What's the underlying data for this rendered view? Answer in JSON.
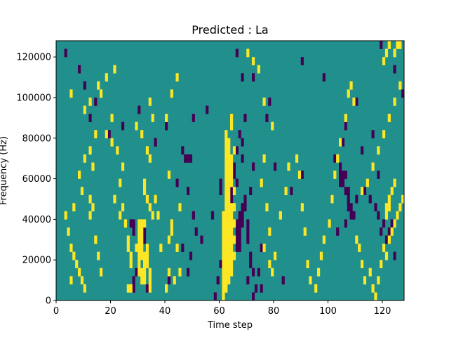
{
  "chart_data": {
    "type": "heatmap",
    "title": "Predicted : La",
    "xlabel": "Time step",
    "ylabel": "Frequency (Hz)",
    "xlim": [
      0,
      128
    ],
    "ylim": [
      0,
      128000
    ],
    "x_ticks": [
      0,
      20,
      40,
      60,
      80,
      100,
      120
    ],
    "y_ticks": [
      0,
      20000,
      40000,
      60000,
      80000,
      100000,
      120000
    ],
    "rows": 32,
    "row_height": 4000,
    "colors": {
      "background": "#21908d",
      "low": "#440154",
      "high": "#fde725"
    },
    "grid": false,
    "legend": "none",
    "low_cells": [
      [
        3,
        30
      ],
      [
        8,
        28
      ],
      [
        10,
        26
      ],
      [
        12,
        22
      ],
      [
        14,
        24
      ],
      [
        36,
        19
      ],
      [
        40,
        21
      ],
      [
        44,
        14
      ],
      [
        46,
        18
      ],
      [
        48,
        13
      ],
      [
        50,
        10
      ],
      [
        55,
        23
      ],
      [
        58,
        0
      ],
      [
        59,
        2
      ],
      [
        60,
        4
      ],
      [
        66,
        30
      ],
      [
        68,
        27
      ],
      [
        75,
        6
      ],
      [
        77,
        22
      ],
      [
        90,
        29
      ],
      [
        98,
        27
      ],
      [
        110,
        24
      ],
      [
        119,
        31
      ],
      [
        124,
        28
      ],
      [
        127,
        25
      ],
      [
        47,
        17
      ],
      [
        48,
        17
      ],
      [
        49,
        17
      ],
      [
        50,
        22
      ],
      [
        28,
        9
      ],
      [
        27,
        9
      ],
      [
        28,
        8
      ],
      [
        32,
        8
      ],
      [
        32,
        7
      ],
      [
        28,
        2
      ],
      [
        28,
        1
      ],
      [
        29,
        3
      ],
      [
        33,
        1
      ],
      [
        41,
        2
      ],
      [
        46,
        6
      ],
      [
        48,
        3
      ],
      [
        49,
        5
      ],
      [
        51,
        8
      ],
      [
        53,
        7
      ],
      [
        57,
        10
      ],
      [
        60,
        13
      ],
      [
        60,
        14
      ],
      [
        64,
        12
      ],
      [
        64,
        13
      ],
      [
        65,
        15
      ],
      [
        65,
        16
      ],
      [
        66,
        14
      ],
      [
        66,
        18
      ],
      [
        67,
        20
      ],
      [
        68,
        17
      ],
      [
        68,
        19
      ],
      [
        69,
        22
      ],
      [
        70,
        7
      ],
      [
        70,
        8
      ],
      [
        70,
        9
      ],
      [
        71,
        4
      ],
      [
        71,
        5
      ],
      [
        72,
        3
      ],
      [
        71,
        13
      ],
      [
        72,
        16
      ],
      [
        74,
        3
      ],
      [
        75,
        1
      ],
      [
        72,
        0
      ],
      [
        73,
        1
      ],
      [
        72,
        27
      ],
      [
        78,
        24
      ],
      [
        80,
        16
      ],
      [
        83,
        2
      ],
      [
        86,
        13
      ],
      [
        90,
        15
      ],
      [
        24,
        21
      ],
      [
        30,
        23
      ],
      [
        36,
        19
      ],
      [
        19,
        20
      ],
      [
        66,
        6
      ],
      [
        66,
        7
      ],
      [
        66,
        8
      ],
      [
        66,
        9
      ],
      [
        67,
        6
      ],
      [
        67,
        7
      ],
      [
        67,
        8
      ],
      [
        67,
        9
      ],
      [
        67,
        10
      ],
      [
        68,
        9
      ],
      [
        68,
        10
      ],
      [
        68,
        11
      ],
      [
        69,
        11
      ],
      [
        69,
        12
      ],
      [
        70,
        2
      ],
      [
        104,
        14
      ],
      [
        104,
        15
      ],
      [
        105,
        14
      ],
      [
        105,
        15
      ],
      [
        106,
        15
      ],
      [
        104,
        16
      ],
      [
        107,
        13
      ],
      [
        106,
        13
      ],
      [
        107,
        12
      ],
      [
        107,
        11
      ],
      [
        108,
        11
      ],
      [
        108,
        10
      ],
      [
        109,
        10
      ],
      [
        110,
        12
      ],
      [
        105,
        19
      ],
      [
        106,
        21
      ],
      [
        102,
        17
      ],
      [
        101,
        12
      ],
      [
        103,
        8
      ],
      [
        106,
        9
      ],
      [
        113,
        13
      ],
      [
        115,
        12
      ],
      [
        117,
        11
      ],
      [
        118,
        10
      ],
      [
        119,
        8
      ],
      [
        120,
        9
      ],
      [
        121,
        7
      ],
      [
        122,
        8
      ],
      [
        123,
        9
      ],
      [
        124,
        5
      ],
      [
        112,
        18
      ],
      [
        116,
        20
      ],
      [
        118,
        15
      ]
    ],
    "high_cells": [
      [
        5,
        25
      ],
      [
        10,
        23
      ],
      [
        12,
        24
      ],
      [
        12,
        18
      ],
      [
        14,
        20
      ],
      [
        18,
        27
      ],
      [
        21,
        28
      ],
      [
        15,
        26
      ],
      [
        16,
        25
      ],
      [
        13,
        16
      ],
      [
        10,
        17
      ],
      [
        8,
        15
      ],
      [
        9,
        13
      ],
      [
        6,
        11
      ],
      [
        4,
        8
      ],
      [
        3,
        10
      ],
      [
        5,
        6
      ],
      [
        5,
        2
      ],
      [
        6,
        5
      ],
      [
        7,
        4
      ],
      [
        8,
        3
      ],
      [
        9,
        2
      ],
      [
        10,
        1
      ],
      [
        14,
        7
      ],
      [
        15,
        5
      ],
      [
        16,
        3
      ],
      [
        12,
        10
      ],
      [
        12,
        12
      ],
      [
        13,
        11
      ],
      [
        18,
        20
      ],
      [
        20,
        19
      ],
      [
        20,
        22
      ],
      [
        22,
        18
      ],
      [
        24,
        16
      ],
      [
        23,
        14
      ],
      [
        21,
        12
      ],
      [
        29,
        21
      ],
      [
        31,
        20
      ],
      [
        34,
        24
      ],
      [
        35,
        22
      ],
      [
        33,
        18
      ],
      [
        34,
        17
      ],
      [
        32,
        14
      ],
      [
        32,
        13
      ],
      [
        33,
        12
      ],
      [
        34,
        11
      ],
      [
        35,
        10
      ],
      [
        30,
        9
      ],
      [
        30,
        8
      ],
      [
        30,
        7
      ],
      [
        29,
        6
      ],
      [
        27,
        4
      ],
      [
        27,
        5
      ],
      [
        26,
        6
      ],
      [
        26,
        7
      ],
      [
        25,
        9
      ],
      [
        24,
        11
      ],
      [
        23,
        10
      ],
      [
        34,
        3
      ],
      [
        34,
        2
      ],
      [
        34,
        1
      ],
      [
        33,
        4
      ],
      [
        33,
        5
      ],
      [
        33,
        6
      ],
      [
        27,
        1
      ],
      [
        26,
        1
      ],
      [
        30,
        4
      ],
      [
        30,
        5
      ],
      [
        30,
        6
      ],
      [
        31,
        5
      ],
      [
        31,
        6
      ],
      [
        31,
        7
      ],
      [
        31,
        8
      ],
      [
        32,
        4
      ],
      [
        32,
        5
      ],
      [
        31,
        3
      ],
      [
        32,
        3
      ],
      [
        30,
        3
      ],
      [
        31,
        2
      ],
      [
        32,
        2
      ],
      [
        31,
        9
      ],
      [
        32,
        9
      ],
      [
        40,
        22
      ],
      [
        42,
        25
      ],
      [
        44,
        27
      ],
      [
        41,
        15
      ],
      [
        45,
        11
      ],
      [
        44,
        6
      ],
      [
        45,
        3
      ],
      [
        43,
        2
      ],
      [
        41,
        3
      ],
      [
        41,
        7
      ],
      [
        42,
        8
      ],
      [
        42,
        9
      ],
      [
        36,
        12
      ],
      [
        37,
        10
      ],
      [
        38,
        6
      ],
      [
        40,
        1
      ],
      [
        61,
        0
      ],
      [
        61,
        1
      ],
      [
        61,
        2
      ],
      [
        61,
        3
      ],
      [
        61,
        4
      ],
      [
        61,
        5
      ],
      [
        61,
        6
      ],
      [
        61,
        7
      ],
      [
        61,
        8
      ],
      [
        61,
        9
      ],
      [
        61,
        10
      ],
      [
        62,
        1
      ],
      [
        62,
        2
      ],
      [
        62,
        3
      ],
      [
        62,
        4
      ],
      [
        62,
        5
      ],
      [
        62,
        6
      ],
      [
        62,
        7
      ],
      [
        62,
        8
      ],
      [
        62,
        9
      ],
      [
        62,
        10
      ],
      [
        62,
        11
      ],
      [
        62,
        12
      ],
      [
        62,
        13
      ],
      [
        62,
        14
      ],
      [
        62,
        15
      ],
      [
        62,
        16
      ],
      [
        62,
        17
      ],
      [
        62,
        18
      ],
      [
        62,
        19
      ],
      [
        62,
        20
      ],
      [
        63,
        2
      ],
      [
        63,
        3
      ],
      [
        63,
        4
      ],
      [
        63,
        5
      ],
      [
        63,
        6
      ],
      [
        63,
        7
      ],
      [
        63,
        8
      ],
      [
        63,
        9
      ],
      [
        63,
        10
      ],
      [
        63,
        11
      ],
      [
        63,
        12
      ],
      [
        63,
        13
      ],
      [
        63,
        14
      ],
      [
        63,
        15
      ],
      [
        63,
        16
      ],
      [
        63,
        17
      ],
      [
        63,
        18
      ],
      [
        63,
        19
      ],
      [
        64,
        3
      ],
      [
        64,
        4
      ],
      [
        64,
        5
      ],
      [
        64,
        6
      ],
      [
        64,
        7
      ],
      [
        64,
        8
      ],
      [
        64,
        9
      ],
      [
        64,
        10
      ],
      [
        64,
        11
      ],
      [
        64,
        14
      ],
      [
        64,
        15
      ],
      [
        64,
        16
      ],
      [
        64,
        17
      ],
      [
        64,
        21
      ],
      [
        64,
        22
      ],
      [
        65,
        5
      ],
      [
        65,
        7
      ],
      [
        65,
        9
      ],
      [
        65,
        11
      ],
      [
        65,
        13
      ],
      [
        65,
        18
      ],
      [
        70,
        30
      ],
      [
        72,
        29
      ],
      [
        74,
        28
      ],
      [
        76,
        24
      ],
      [
        79,
        21
      ],
      [
        76,
        17
      ],
      [
        75,
        14
      ],
      [
        77,
        11
      ],
      [
        78,
        8
      ],
      [
        76,
        6
      ],
      [
        78,
        4
      ],
      [
        79,
        3
      ],
      [
        80,
        5
      ],
      [
        82,
        10
      ],
      [
        84,
        13
      ],
      [
        85,
        16
      ],
      [
        88,
        17
      ],
      [
        89,
        15
      ],
      [
        90,
        11
      ],
      [
        91,
        8
      ],
      [
        92,
        4
      ],
      [
        93,
        2
      ],
      [
        95,
        1
      ],
      [
        96,
        3
      ],
      [
        97,
        5
      ],
      [
        98,
        7
      ],
      [
        100,
        9
      ],
      [
        101,
        12
      ],
      [
        102,
        15
      ],
      [
        103,
        17
      ],
      [
        104,
        19
      ],
      [
        106,
        22
      ],
      [
        107,
        25
      ],
      [
        108,
        26
      ],
      [
        109,
        24
      ],
      [
        110,
        7
      ],
      [
        111,
        6
      ],
      [
        112,
        4
      ],
      [
        113,
        2
      ],
      [
        115,
        3
      ],
      [
        116,
        1
      ],
      [
        117,
        0
      ],
      [
        118,
        2
      ],
      [
        119,
        4
      ],
      [
        120,
        6
      ],
      [
        121,
        5
      ],
      [
        122,
        7
      ],
      [
        123,
        8
      ],
      [
        124,
        9
      ],
      [
        125,
        10
      ],
      [
        126,
        11
      ],
      [
        127,
        12
      ],
      [
        112,
        13
      ],
      [
        114,
        14
      ],
      [
        116,
        16
      ],
      [
        118,
        18
      ],
      [
        120,
        20
      ],
      [
        122,
        22
      ],
      [
        124,
        24
      ],
      [
        126,
        26
      ],
      [
        120,
        29
      ],
      [
        121,
        30
      ],
      [
        122,
        31
      ],
      [
        124,
        30
      ],
      [
        125,
        31
      ],
      [
        126,
        31
      ],
      [
        121,
        10
      ],
      [
        121,
        11
      ],
      [
        122,
        11
      ],
      [
        122,
        12
      ],
      [
        123,
        13
      ],
      [
        124,
        14
      ]
    ]
  }
}
